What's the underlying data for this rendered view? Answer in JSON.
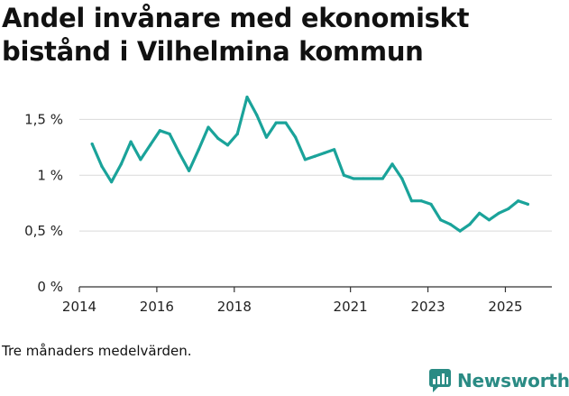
{
  "title": "Andel invånare med ekonomiskt bistånd i Vilhelmina kommun",
  "caption": "Tre månaders medelvärden.",
  "brand": {
    "name": "Newsworthy",
    "icon": "newsworthy-logo-icon"
  },
  "colors": {
    "line": "#1aa39a",
    "grid": "#d9d9d9",
    "axis": "#333333",
    "brand": "#2a8b84"
  },
  "chart_data": {
    "type": "line",
    "title": "Andel invånare med ekonomiskt bistånd i Vilhelmina kommun",
    "xlabel": "",
    "ylabel": "",
    "xlim": [
      2014.0,
      2026.2
    ],
    "ylim": [
      0,
      1.6
    ],
    "y_ticks": [
      {
        "value": 0,
        "label": "0 %"
      },
      {
        "value": 0.5,
        "label": "0,5 %"
      },
      {
        "value": 1.0,
        "label": "1 %"
      },
      {
        "value": 1.5,
        "label": "1,5 %"
      }
    ],
    "x_ticks": [
      {
        "value": 2014,
        "label": "2014"
      },
      {
        "value": 2016,
        "label": "2016"
      },
      {
        "value": 2018,
        "label": "2018"
      },
      {
        "value": 2021,
        "label": "2021"
      },
      {
        "value": 2023,
        "label": "2023"
      },
      {
        "value": 2025,
        "label": "2025"
      }
    ],
    "grid": true,
    "series": [
      {
        "name": "Andel invånare med ekonomiskt bistånd",
        "x": [
          2014.33,
          2014.58,
          2014.83,
          2015.08,
          2015.33,
          2015.58,
          2015.83,
          2016.08,
          2016.33,
          2016.58,
          2016.83,
          2017.08,
          2017.33,
          2017.58,
          2017.83,
          2018.08,
          2018.33,
          2018.58,
          2018.83,
          2019.08,
          2019.33,
          2019.58,
          2019.83,
          2020.08,
          2020.33,
          2020.58,
          2020.83,
          2021.08,
          2021.33,
          2021.58,
          2021.83,
          2022.08,
          2022.33,
          2022.58,
          2022.83,
          2023.08,
          2023.33,
          2023.58,
          2023.83,
          2024.08,
          2024.33,
          2024.58,
          2024.83,
          2025.08,
          2025.33,
          2025.58
        ],
        "values": [
          1.28,
          1.08,
          0.94,
          1.1,
          1.3,
          1.14,
          1.27,
          1.4,
          1.37,
          1.2,
          1.04,
          1.23,
          1.43,
          1.33,
          1.27,
          1.37,
          1.7,
          1.54,
          1.34,
          1.47,
          1.47,
          1.34,
          1.14,
          1.17,
          1.2,
          1.23,
          1.0,
          0.97,
          0.97,
          0.97,
          0.97,
          1.1,
          0.97,
          0.77,
          0.77,
          0.74,
          0.6,
          0.56,
          0.5,
          0.56,
          0.66,
          0.6,
          0.66,
          0.7,
          0.77,
          0.74
        ]
      }
    ]
  }
}
